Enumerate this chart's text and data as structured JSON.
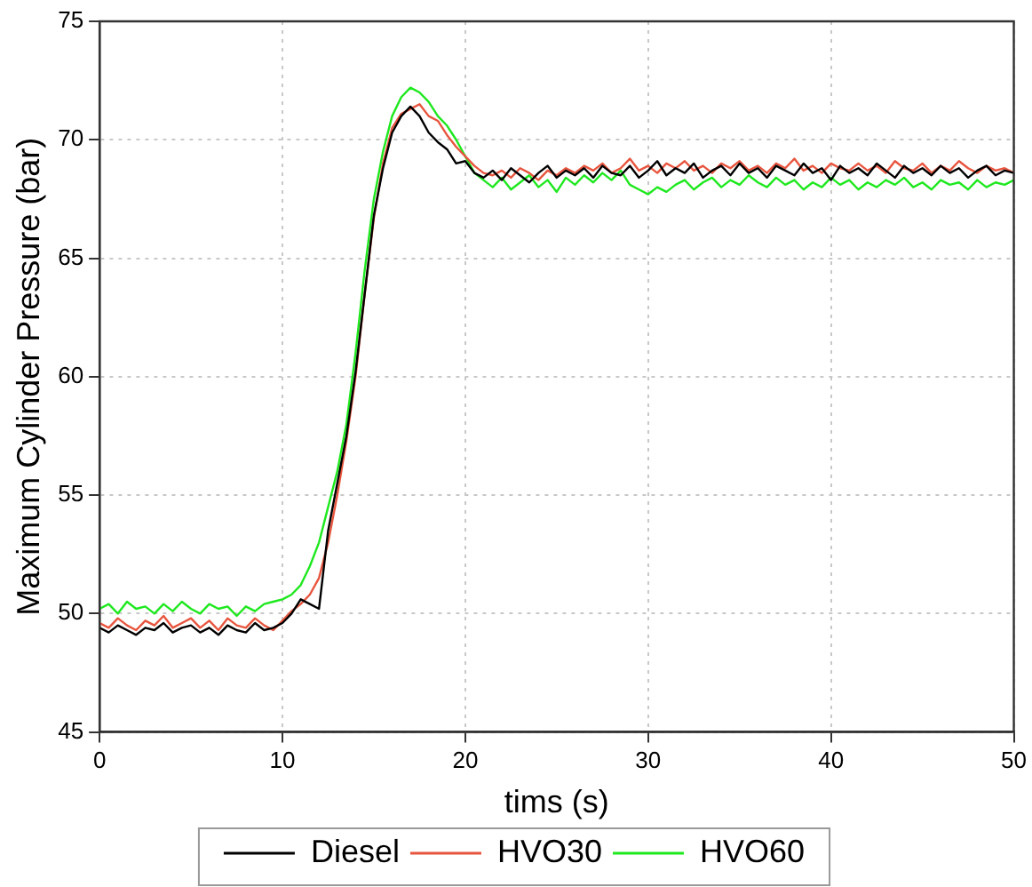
{
  "chart_data": {
    "type": "line",
    "xlabel": "tims (s)",
    "ylabel": "Maximum Cylinder Pressure (bar)",
    "x": [
      0,
      0.5,
      1,
      1.5,
      2,
      2.5,
      3,
      3.5,
      4,
      4.5,
      5,
      5.5,
      6,
      6.5,
      7,
      7.5,
      8,
      8.5,
      9,
      9.5,
      10,
      10.5,
      11,
      11.5,
      12,
      12.5,
      13,
      13.5,
      14,
      14.5,
      15,
      15.5,
      16,
      16.5,
      17,
      17.5,
      18,
      18.5,
      19,
      19.5,
      20,
      20.5,
      21,
      21.5,
      22,
      22.5,
      23,
      23.5,
      24,
      24.5,
      25,
      25.5,
      26,
      26.5,
      27,
      27.5,
      28,
      28.5,
      29,
      29.5,
      30,
      30.5,
      31,
      31.5,
      32,
      32.5,
      33,
      33.5,
      34,
      34.5,
      35,
      35.5,
      36,
      36.5,
      37,
      37.5,
      38,
      38.5,
      39,
      39.5,
      40,
      40.5,
      41,
      41.5,
      42,
      42.5,
      43,
      43.5,
      44,
      44.5,
      45,
      45.5,
      46,
      46.5,
      47,
      47.5,
      48,
      48.5,
      49,
      49.5,
      50
    ],
    "series": [
      {
        "name": "Diesel",
        "color": "#000000",
        "values": [
          49.4,
          49.2,
          49.5,
          49.3,
          49.1,
          49.4,
          49.3,
          49.6,
          49.2,
          49.4,
          49.5,
          49.2,
          49.4,
          49.1,
          49.5,
          49.3,
          49.2,
          49.6,
          49.3,
          49.4,
          49.6,
          50.0,
          50.6,
          50.4,
          50.2,
          53.5,
          55.5,
          57.5,
          60.2,
          63.5,
          66.8,
          68.8,
          70.3,
          71.0,
          71.4,
          71.0,
          70.3,
          69.9,
          69.6,
          69.0,
          69.1,
          68.6,
          68.4,
          68.7,
          68.3,
          68.8,
          68.5,
          68.2,
          68.6,
          68.9,
          68.4,
          68.7,
          68.5,
          68.8,
          68.4,
          68.9,
          68.6,
          68.5,
          68.9,
          68.4,
          68.7,
          69.1,
          68.5,
          68.8,
          68.6,
          69.0,
          68.4,
          68.7,
          68.9,
          68.5,
          69.0,
          68.6,
          68.8,
          68.4,
          68.9,
          68.7,
          68.5,
          69.0,
          68.6,
          68.8,
          68.3,
          68.9,
          68.6,
          68.8,
          68.5,
          69.0,
          68.7,
          68.4,
          68.9,
          68.6,
          68.8,
          68.5,
          68.9,
          68.6,
          68.8,
          68.4,
          68.7,
          68.9,
          68.5,
          68.7,
          68.6
        ]
      },
      {
        "name": "HVO30",
        "color": "#e8553e",
        "values": [
          49.6,
          49.4,
          49.8,
          49.5,
          49.3,
          49.7,
          49.5,
          49.9,
          49.4,
          49.6,
          49.8,
          49.4,
          49.7,
          49.3,
          49.8,
          49.5,
          49.4,
          49.8,
          49.5,
          49.3,
          49.7,
          50.1,
          50.4,
          50.8,
          51.5,
          53.0,
          55.0,
          57.3,
          60.0,
          63.5,
          66.7,
          69.0,
          70.5,
          71.1,
          71.3,
          71.5,
          71.0,
          70.8,
          70.2,
          69.7,
          69.3,
          68.9,
          68.6,
          68.5,
          68.7,
          68.4,
          68.8,
          68.6,
          68.3,
          68.7,
          68.5,
          68.8,
          68.6,
          68.9,
          68.7,
          69.0,
          68.6,
          68.8,
          69.2,
          68.7,
          68.9,
          68.6,
          69.0,
          68.8,
          69.1,
          68.7,
          68.9,
          68.6,
          69.0,
          68.8,
          69.1,
          68.7,
          68.9,
          68.6,
          69.0,
          68.8,
          69.2,
          68.7,
          68.9,
          68.6,
          69.0,
          68.8,
          68.7,
          69.0,
          68.7,
          68.9,
          68.6,
          69.1,
          68.8,
          68.7,
          69.0,
          68.6,
          68.9,
          68.7,
          69.1,
          68.8,
          68.6,
          68.9,
          68.7,
          68.8,
          68.6
        ]
      },
      {
        "name": "HVO60",
        "color": "#1ee81e",
        "values": [
          50.2,
          50.4,
          50.0,
          50.5,
          50.2,
          50.3,
          50.0,
          50.4,
          50.1,
          50.5,
          50.2,
          50.0,
          50.4,
          50.2,
          50.3,
          49.9,
          50.3,
          50.1,
          50.4,
          50.5,
          50.6,
          50.8,
          51.2,
          52.0,
          53.0,
          54.5,
          56.0,
          58.0,
          61.0,
          64.5,
          67.5,
          69.5,
          71.0,
          71.8,
          72.2,
          72.0,
          71.6,
          71.0,
          70.6,
          70.0,
          69.3,
          68.6,
          68.3,
          68.0,
          68.4,
          67.9,
          68.2,
          68.5,
          68.0,
          68.3,
          67.8,
          68.4,
          68.1,
          68.5,
          68.2,
          68.6,
          68.3,
          68.7,
          68.1,
          67.9,
          67.7,
          68.0,
          67.8,
          68.1,
          68.3,
          67.9,
          68.2,
          68.4,
          68.0,
          68.3,
          68.1,
          68.5,
          68.2,
          68.0,
          68.4,
          68.1,
          68.3,
          67.9,
          68.2,
          68.0,
          68.4,
          68.1,
          68.3,
          67.9,
          68.2,
          68.0,
          68.3,
          68.1,
          68.4,
          68.0,
          68.2,
          67.9,
          68.3,
          68.1,
          68.2,
          67.9,
          68.3,
          68.0,
          68.2,
          68.1,
          68.3
        ]
      }
    ],
    "xlim": [
      0,
      50
    ],
    "xticks": [
      0,
      10,
      20,
      30,
      40,
      50
    ],
    "ylim": [
      45,
      75
    ],
    "yticks": [
      45,
      50,
      55,
      60,
      65,
      70,
      75
    ],
    "grid": true,
    "legend": "bottom",
    "marker": "none",
    "line_style": "solid"
  }
}
